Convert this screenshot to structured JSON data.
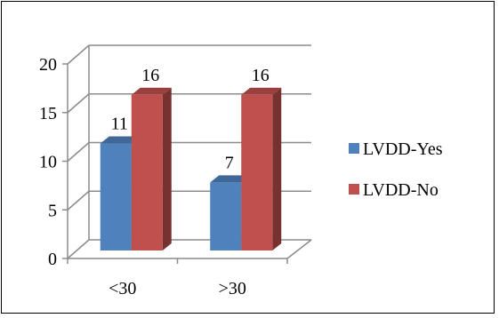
{
  "chart_data": {
    "type": "bar",
    "style": "3d-clustered-column",
    "categories": [
      "<30",
      ">30"
    ],
    "series": [
      {
        "name": "LVDD-Yes",
        "values": [
          11,
          7
        ],
        "color": "#4f81bd"
      },
      {
        "name": "LVDD-No",
        "values": [
          16,
          16
        ],
        "color": "#c0504d"
      }
    ],
    "ylim": [
      0,
      20
    ],
    "yticks": [
      0,
      5,
      10,
      15,
      20
    ],
    "grid": true,
    "data_labels": true,
    "legend_position": "right",
    "title": "",
    "xlabel": "",
    "ylabel": ""
  }
}
